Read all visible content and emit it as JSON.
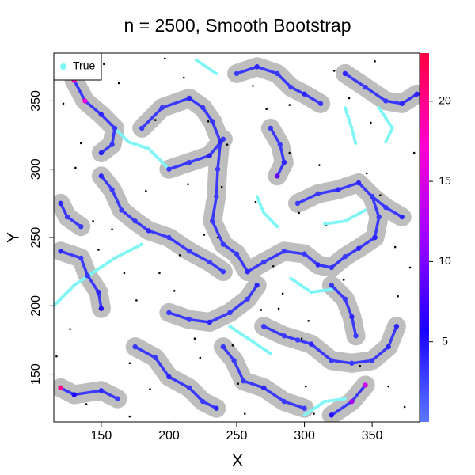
{
  "chart_data": {
    "type": "scatter",
    "title": "n = 2500, Smooth Bootstrap",
    "x_label": "X",
    "y_label": "Y",
    "xlim": [
      115,
      385
    ],
    "ylim": [
      115,
      385
    ],
    "xticks": [
      150,
      200,
      250,
      300,
      350
    ],
    "yticks": [
      150,
      200,
      250,
      300,
      350
    ],
    "legend": "top-left",
    "series": [
      {
        "name": "True",
        "color": "#7ff5f5",
        "x": [
          160,
          170,
          185,
          200,
          null,
          115,
          130,
          145,
          160,
          180,
          null,
          245,
          260,
          275,
          null,
          290,
          305,
          320,
          null,
          300,
          315,
          330,
          null,
          355,
          365,
          360,
          null,
          220,
          235,
          null,
          330,
          335,
          338,
          null,
          265,
          270,
          280,
          null,
          315,
          330,
          345
        ],
        "y": [
          330,
          320,
          315,
          300,
          null,
          200,
          215,
          225,
          235,
          245,
          null,
          185,
          175,
          165,
          null,
          220,
          210,
          212,
          null,
          120,
          130,
          132,
          null,
          345,
          330,
          320,
          null,
          380,
          370,
          null,
          345,
          330,
          318,
          null,
          280,
          268,
          258,
          null,
          260,
          262,
          270
        ]
      }
    ],
    "filaments": {
      "color": "#bebebe",
      "x": [
        130,
        138,
        150,
        160,
        158,
        150,
        null,
        180,
        195,
        215,
        225,
        232,
        238,
        null,
        200,
        215,
        230,
        240,
        null,
        238,
        236,
        235,
        232,
        240,
        250,
        258,
        null,
        150,
        158,
        165,
        175,
        185,
        200,
        215,
        230,
        240,
        null,
        120,
        135,
        140,
        148,
        150,
        null,
        258,
        270,
        285,
        300,
        310,
        320,
        330,
        340,
        352,
        null,
        295,
        310,
        325,
        340,
        350,
        360,
        372,
        null,
        352,
        355,
        350,
        null,
        200,
        215,
        230,
        245,
        258,
        265,
        null,
        270,
        285,
        295,
        305,
        320,
        335,
        350,
        362,
        368,
        null,
        175,
        190,
        200,
        215,
        225,
        235,
        null,
        240,
        248,
        255,
        270,
        285,
        300,
        null,
        320,
        330,
        335,
        338,
        null,
        120,
        130,
        150,
        162,
        null,
        250,
        265,
        280,
        290,
        300,
        312,
        null,
        330,
        345,
        360,
        372,
        383,
        null,
        275,
        282,
        285,
        280,
        null,
        120,
        125,
        135,
        null,
        320,
        335,
        345
      ],
      "y": [
        365,
        350,
        340,
        330,
        318,
        312,
        null,
        330,
        345,
        352,
        345,
        335,
        320,
        null,
        300,
        305,
        310,
        322,
        null,
        320,
        300,
        280,
        262,
        245,
        238,
        225,
        null,
        295,
        285,
        270,
        262,
        255,
        250,
        240,
        232,
        225,
        null,
        240,
        235,
        222,
        210,
        198,
        null,
        225,
        232,
        240,
        238,
        230,
        228,
        236,
        242,
        250,
        null,
        275,
        282,
        285,
        290,
        280,
        272,
        265,
        null,
        250,
        265,
        280,
        null,
        195,
        190,
        188,
        195,
        205,
        215,
        null,
        185,
        178,
        175,
        172,
        160,
        158,
        160,
        170,
        185,
        null,
        170,
        162,
        148,
        140,
        130,
        125,
        null,
        170,
        160,
        145,
        140,
        130,
        125,
        null,
        215,
        205,
        192,
        178,
        null,
        140,
        135,
        138,
        132,
        null,
        370,
        375,
        370,
        360,
        355,
        348,
        null,
        370,
        360,
        350,
        348,
        355,
        null,
        330,
        318,
        305,
        295,
        null,
        275,
        265,
        258,
        null,
        120,
        130,
        142
      ],
      "values": [
        18,
        16,
        4,
        3,
        3,
        4,
        null,
        3,
        3,
        4,
        3,
        3,
        4,
        null,
        3,
        3,
        4,
        3,
        null,
        4,
        3,
        3,
        3,
        3,
        3,
        4,
        null,
        4,
        3,
        3,
        3,
        4,
        3,
        3,
        3,
        3,
        null,
        4,
        3,
        3,
        4,
        5,
        null,
        4,
        3,
        3,
        3,
        4,
        3,
        3,
        4,
        4,
        null,
        3,
        3,
        4,
        4,
        3,
        3,
        4,
        null,
        4,
        3,
        3,
        null,
        3,
        3,
        4,
        3,
        3,
        4,
        null,
        3,
        3,
        3,
        4,
        3,
        3,
        3,
        4,
        4,
        null,
        3,
        3,
        4,
        3,
        3,
        4,
        null,
        3,
        3,
        3,
        4,
        3,
        3,
        null,
        3,
        3,
        4,
        3,
        null,
        20,
        6,
        4,
        3,
        null,
        3,
        4,
        3,
        3,
        4,
        3,
        null,
        4,
        3,
        3,
        4,
        4,
        null,
        3,
        3,
        4,
        9,
        null,
        4,
        3,
        3,
        null,
        5,
        12,
        14
      ]
    },
    "points": {
      "color": "#000000",
      "x": [
        122,
        131,
        144,
        152,
        167,
        171,
        183,
        190,
        204,
        211,
        219,
        226,
        243,
        251,
        262,
        268,
        277,
        289,
        296,
        303,
        311,
        322,
        329,
        341,
        349,
        356,
        367,
        374,
        381,
        127,
        139,
        158,
        176,
        197,
        208,
        223,
        239,
        256,
        272,
        284,
        298,
        316,
        333,
        346,
        362,
        378,
        135,
        163,
        186,
        214,
        247,
        281,
        307,
        338,
        369,
        148,
        193,
        229,
        264,
        301,
        352,
        117,
        171,
        236,
        289
      ],
      "y": [
        348,
        301,
        262,
        377,
        224,
        158,
        284,
        336,
        211,
        367,
        176,
        252,
        318,
        143,
        361,
        197,
        229,
        347,
        268,
        189,
        303,
        372,
        219,
        156,
        334,
        281,
        243,
        126,
        312,
        183,
        128,
        256,
        204,
        381,
        237,
        162,
        287,
        121,
        344,
        209,
        176,
        259,
        352,
        297,
        141,
        228,
        319,
        363,
        139,
        289,
        171,
        198,
        121,
        364,
        207,
        241,
        224,
        335,
        276,
        141,
        379,
        163,
        119,
        250,
        312
      ]
    },
    "colorbar": {
      "lim": [
        0,
        23
      ],
      "ticks": [
        5,
        10,
        15,
        20
      ],
      "colors": [
        "#5a78ff",
        "#1a00ff",
        "#a000ff",
        "#ff00d0",
        "#ff0040"
      ]
    }
  }
}
